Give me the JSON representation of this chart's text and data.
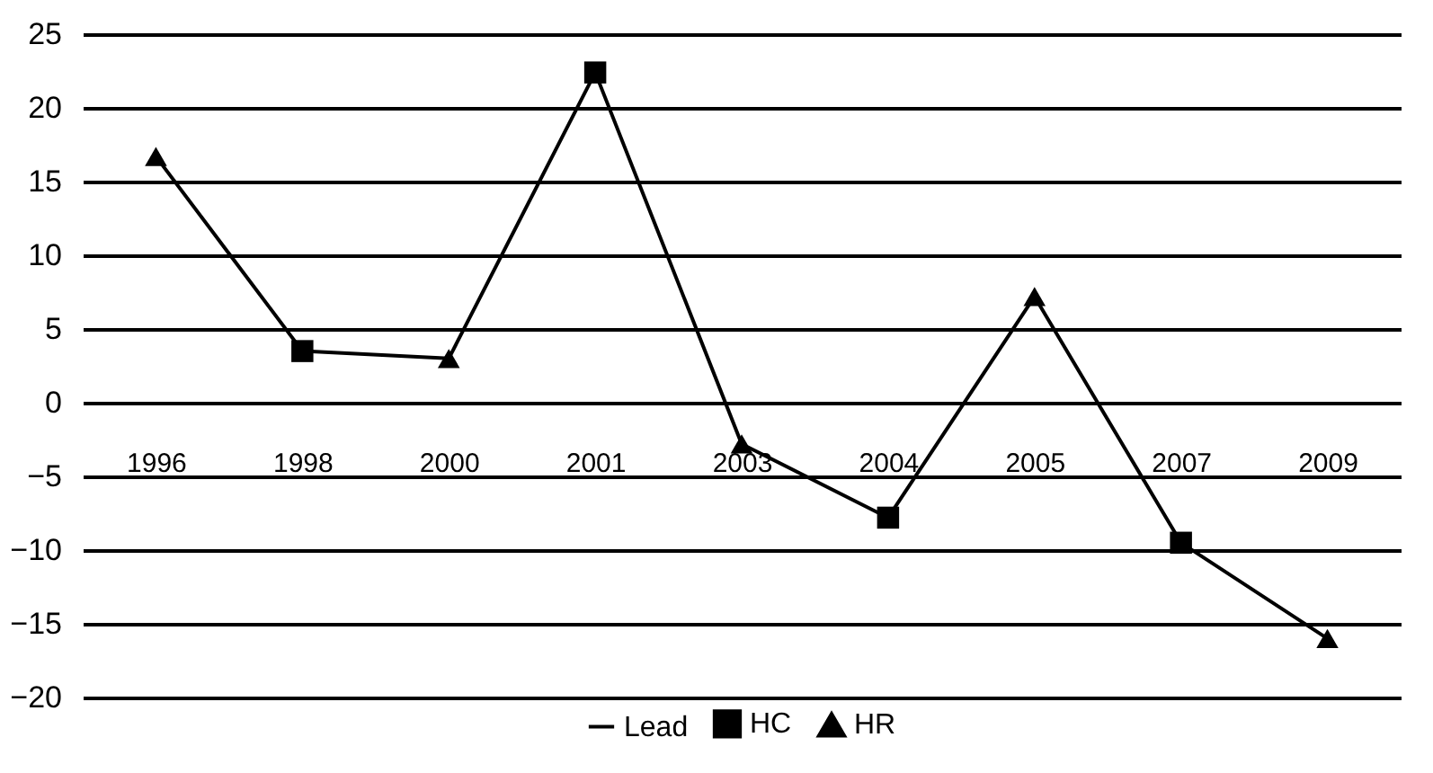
{
  "chart_data": {
    "type": "line",
    "categories": [
      "1996",
      "1998",
      "2000",
      "2001",
      "2003",
      "2004",
      "2005",
      "2007",
      "2009"
    ],
    "series": [
      {
        "name": "Lead",
        "type": "line",
        "color": "#000000",
        "marker": "none",
        "values": [
          16.7,
          3.5,
          3.0,
          22.4,
          -2.8,
          -7.8,
          7.2,
          -9.5,
          -16.0
        ]
      },
      {
        "name": "HC",
        "type": "scatter",
        "color": "#000000",
        "marker": "square",
        "values": [
          null,
          3.5,
          null,
          22.4,
          null,
          -7.8,
          null,
          -9.5,
          null
        ]
      },
      {
        "name": "HR",
        "type": "scatter",
        "color": "#000000",
        "marker": "triangle",
        "values": [
          16.7,
          null,
          3.0,
          null,
          -2.8,
          null,
          7.2,
          null,
          -16.0
        ]
      }
    ],
    "ylim": [
      -20,
      25
    ],
    "yticks": [
      -20,
      -15,
      -10,
      -5,
      0,
      5,
      10,
      15,
      20,
      25
    ],
    "grid": "y",
    "legend": "bottom",
    "line_style": "solid"
  }
}
